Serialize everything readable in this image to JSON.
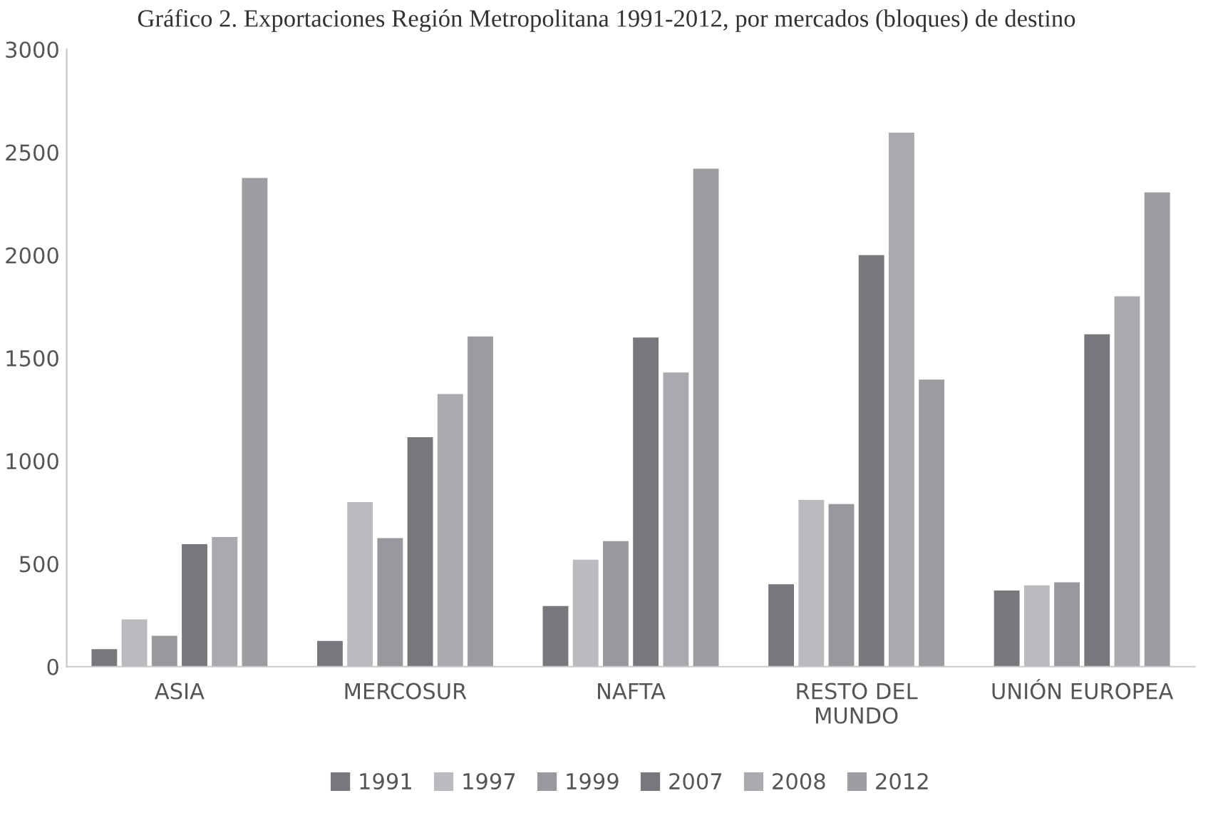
{
  "chart_data": {
    "type": "bar",
    "title": "Gráfico 2. Exportaciones Región Metropolitana 1991-2012, por mercados (bloques) de destino",
    "categories": [
      "ASIA",
      "MERCOSUR",
      "NAFTA",
      "RESTO DEL\nMUNDO",
      "UNIÓN EUROPEA"
    ],
    "series": [
      {
        "name": "1991",
        "color": "#77787c",
        "values": [
          85,
          125,
          295,
          400,
          370
        ]
      },
      {
        "name": "1997",
        "color": "#babbbf",
        "values": [
          230,
          800,
          520,
          810,
          395
        ]
      },
      {
        "name": "1999",
        "color": "#98999d",
        "values": [
          150,
          625,
          610,
          790,
          410
        ]
      },
      {
        "name": "2007",
        "color": "#77787c",
        "values": [
          595,
          1115,
          1600,
          2000,
          1615
        ]
      },
      {
        "name": "2008",
        "color": "#a9aaae",
        "values": [
          630,
          1325,
          1430,
          2595,
          1800
        ]
      },
      {
        "name": "2012",
        "color": "#9c9da1",
        "values": [
          2375,
          1605,
          2420,
          1395,
          2305
        ]
      }
    ],
    "ylim": [
      0,
      3000
    ],
    "yticks": [
      0,
      500,
      1000,
      1500,
      2000,
      2500,
      3000
    ],
    "grid": false,
    "legend": "bottom"
  }
}
